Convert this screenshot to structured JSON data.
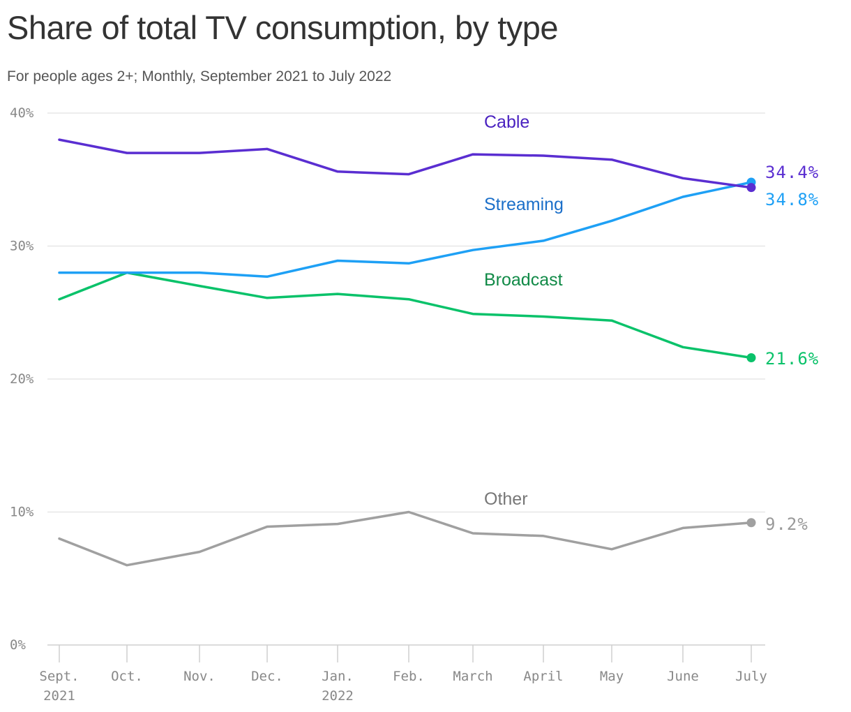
{
  "title": "Share of total TV consumption, by type",
  "subtitle": "For people ages 2+; Monthly, September 2021 to July 2022",
  "chart_data": {
    "type": "line",
    "categories": [
      "Sept.",
      "Oct.",
      "Nov.",
      "Dec.",
      "Jan.",
      "Feb.",
      "March",
      "April",
      "May",
      "June",
      "July"
    ],
    "category_sublabels": [
      "2021",
      "",
      "",
      "",
      "2022",
      "",
      "",
      "",
      "",
      "",
      ""
    ],
    "ylim": [
      0,
      40
    ],
    "yticks": [
      0,
      10,
      20,
      30,
      40
    ],
    "ytick_labels": [
      "0%",
      "10%",
      "20%",
      "30%",
      "40%"
    ],
    "grid": true,
    "series": [
      {
        "name": "Cable",
        "color": "#5a2ed1",
        "label_color": "#4a22c0",
        "values": [
          38.0,
          37.0,
          37.0,
          37.3,
          35.6,
          35.4,
          36.9,
          36.8,
          36.5,
          35.1,
          34.4
        ],
        "end_label": "34.4%"
      },
      {
        "name": "Streaming",
        "color": "#1ea0f5",
        "label_color": "#1b6fc9",
        "values": [
          28.0,
          28.0,
          28.0,
          27.7,
          28.9,
          28.7,
          29.7,
          30.4,
          31.9,
          33.7,
          34.8
        ],
        "end_label": "34.8%"
      },
      {
        "name": "Broadcast",
        "color": "#0ac26a",
        "label_color": "#118a47",
        "values": [
          26.0,
          28.0,
          27.0,
          26.1,
          26.4,
          26.0,
          24.9,
          24.7,
          24.4,
          22.4,
          21.6
        ],
        "end_label": "21.6%"
      },
      {
        "name": "Other",
        "color": "#a0a0a0",
        "label_color": "#777777",
        "values": [
          8.0,
          6.0,
          7.0,
          8.9,
          9.1,
          10.0,
          8.4,
          8.2,
          7.2,
          8.8,
          9.2
        ],
        "end_label": "9.2%"
      }
    ]
  }
}
